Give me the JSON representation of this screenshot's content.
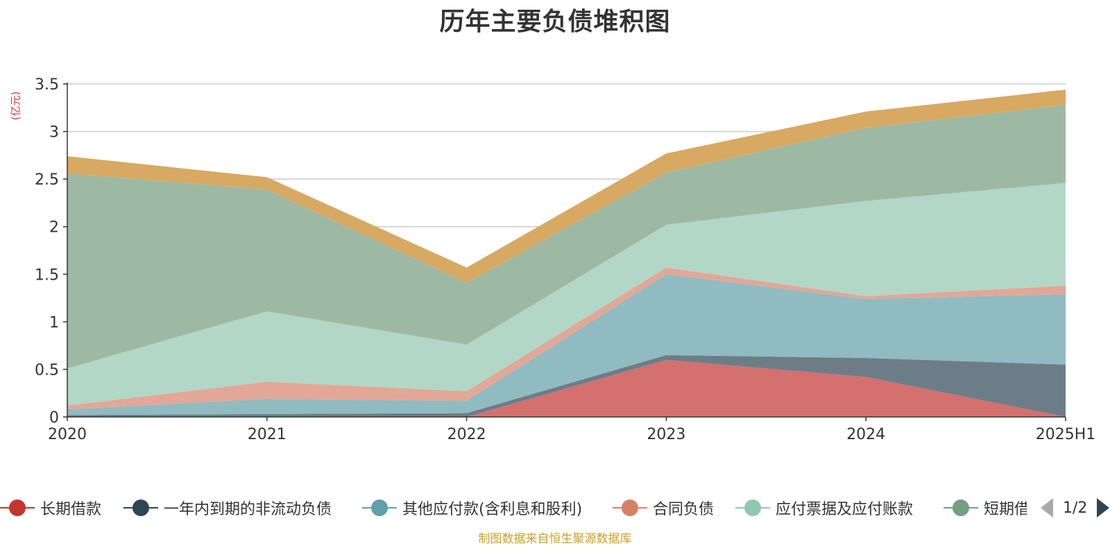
{
  "chart_data": {
    "type": "area",
    "title": "历年主要负债堆积图",
    "unit": "(亿元)",
    "categories": [
      "2020",
      "2021",
      "2022",
      "2023",
      "2024",
      "2025H1"
    ],
    "ylim": [
      0,
      3.5
    ],
    "yticks": [
      "0",
      "0.5",
      "1",
      "1.5",
      "2",
      "2.5",
      "3",
      "3.5"
    ],
    "stacked": true,
    "grid": true,
    "series": [
      {
        "name": "长期借款",
        "color": "#c23531",
        "fill": "#d4706e",
        "values": [
          0,
          0,
          0,
          0.6,
          0.42,
          0
        ]
      },
      {
        "name": "一年内到期的非流动负债",
        "color": "#2f4554",
        "fill": "#6d7d88",
        "values": [
          0.02,
          0.03,
          0.04,
          0.05,
          0.2,
          0.55
        ]
      },
      {
        "name": "其他应付款(含利息和股利)",
        "color": "#61a0a8",
        "fill": "#90bbc0",
        "values": [
          0.06,
          0.16,
          0.13,
          0.85,
          0.62,
          0.74
        ]
      },
      {
        "name": "合同负债",
        "color": "#d48265",
        "fill": "#e2a797",
        "values": [
          0.04,
          0.18,
          0.1,
          0.07,
          0.03,
          0.09
        ]
      },
      {
        "name": "应付票据及应付账款",
        "color": "#91c7ae",
        "fill": "#b2d7c6",
        "values": [
          0.39,
          0.74,
          0.49,
          0.45,
          1.0,
          1.08
        ]
      },
      {
        "name": "短期借款",
        "color": "#749f83",
        "fill": "#9db9a4",
        "values": [
          2.05,
          1.28,
          0.65,
          0.55,
          0.77,
          0.82
        ]
      },
      {
        "name": "",
        "color": "#ca8622",
        "fill": "#d8a962",
        "values": [
          0.18,
          0.13,
          0.16,
          0.2,
          0.17,
          0.16
        ]
      }
    ]
  },
  "legend": {
    "items": [
      "长期借款",
      "一年内到期的非流动负债",
      "其他应付款(含利息和股利)",
      "合同负债",
      "应付票据及应付账款",
      "短期借款"
    ],
    "page": "1/2"
  },
  "footer": {
    "source": "制图数据来自恒生聚源数据库"
  }
}
